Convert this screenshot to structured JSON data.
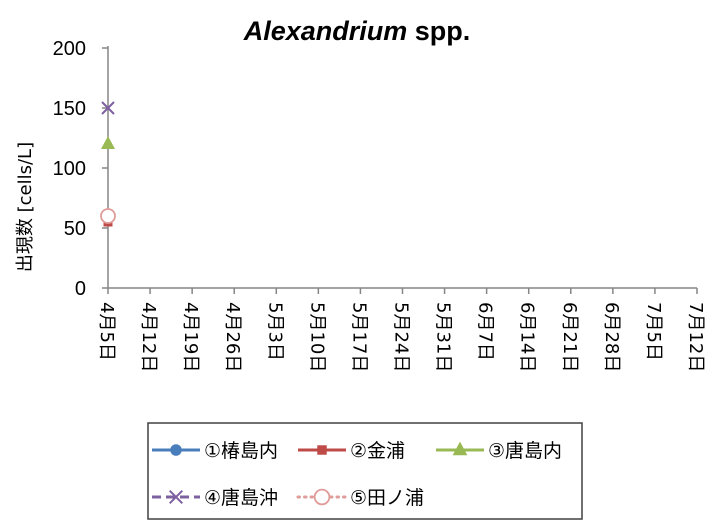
{
  "chart_data": {
    "type": "line",
    "title_parts": [
      {
        "text": "Alexandrium",
        "italic": true
      },
      {
        "text": " spp.",
        "italic": false
      }
    ],
    "xlabel": "",
    "ylabel": "出現数 [cells/L]",
    "ylim": [
      0,
      200
    ],
    "yticks": [
      0,
      50,
      100,
      150,
      200
    ],
    "grid": false,
    "legend": "bottom",
    "categories": [
      "4月5日",
      "4月12日",
      "4月19日",
      "4月26日",
      "5月3日",
      "5月10日",
      "5月17日",
      "5月24日",
      "5月31日",
      "6月7日",
      "6月14日",
      "6月21日",
      "6月28日",
      "7月5日",
      "7月12日"
    ],
    "series": [
      {
        "name": "①椿島内",
        "color": "#4A7EBB",
        "marker": "circle",
        "line": "solid",
        "values": [
          null,
          null,
          null,
          null,
          null,
          null,
          null,
          null,
          null,
          null,
          null,
          null,
          null,
          null,
          null
        ]
      },
      {
        "name": "②金浦",
        "color": "#BE4B48",
        "marker": "square",
        "line": "solid",
        "values": [
          55,
          null,
          null,
          null,
          null,
          null,
          null,
          null,
          null,
          null,
          null,
          null,
          null,
          null,
          null
        ]
      },
      {
        "name": "③唐島内",
        "color": "#98B954",
        "marker": "triangle",
        "line": "solid",
        "values": [
          120,
          null,
          null,
          null,
          null,
          null,
          null,
          null,
          null,
          null,
          null,
          null,
          null,
          null,
          null
        ]
      },
      {
        "name": "④唐島沖",
        "color": "#7D60A0",
        "marker": "x",
        "line": "dashed",
        "values": [
          150,
          null,
          null,
          null,
          null,
          null,
          null,
          null,
          null,
          null,
          null,
          null,
          null,
          null,
          null
        ]
      },
      {
        "name": "⑤田ノ浦",
        "color": "#E09C9A",
        "marker": "open-circle",
        "line": "dotted",
        "values": [
          60,
          null,
          null,
          null,
          null,
          null,
          null,
          null,
          null,
          null,
          null,
          null,
          null,
          null,
          null
        ]
      }
    ]
  }
}
